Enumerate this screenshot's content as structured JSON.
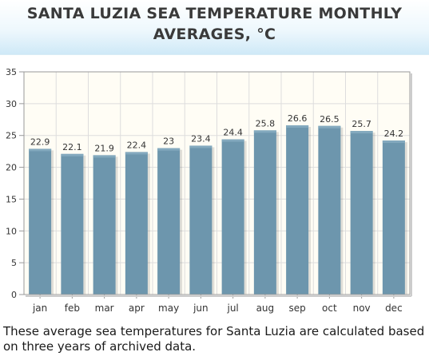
{
  "header": {
    "title_line1": "SANTA LUZIA SEA TEMPERATURE MONTHLY",
    "title_line2": "AVERAGES, °C"
  },
  "caption": "These average sea temperatures for Santa Luzia are calculated based on three years of archived data.",
  "chart_data": {
    "type": "bar",
    "title": "SANTA LUZIA SEA TEMPERATURE MONTHLY AVERAGES, °C",
    "xlabel": "",
    "ylabel": "",
    "categories": [
      "jan",
      "feb",
      "mar",
      "apr",
      "may",
      "jun",
      "jul",
      "aug",
      "sep",
      "oct",
      "nov",
      "dec"
    ],
    "values": [
      22.9,
      22.1,
      21.9,
      22.4,
      23,
      23.4,
      24.4,
      25.8,
      26.6,
      26.5,
      25.7,
      24.2
    ],
    "value_labels": [
      "22.9",
      "22.1",
      "21.9",
      "22.4",
      "23",
      "23.4",
      "24.4",
      "25.8",
      "26.6",
      "26.5",
      "25.7",
      "24.2"
    ],
    "yticks": [
      0,
      5,
      10,
      15,
      20,
      25,
      30,
      35
    ],
    "ylim": [
      0,
      35
    ],
    "grid": true,
    "colors": {
      "bar": "#6d96ad",
      "bar_top": "#83a9be",
      "plot_bg": "#fffdf5",
      "grid": "#dddddd",
      "axis": "#999999"
    }
  }
}
